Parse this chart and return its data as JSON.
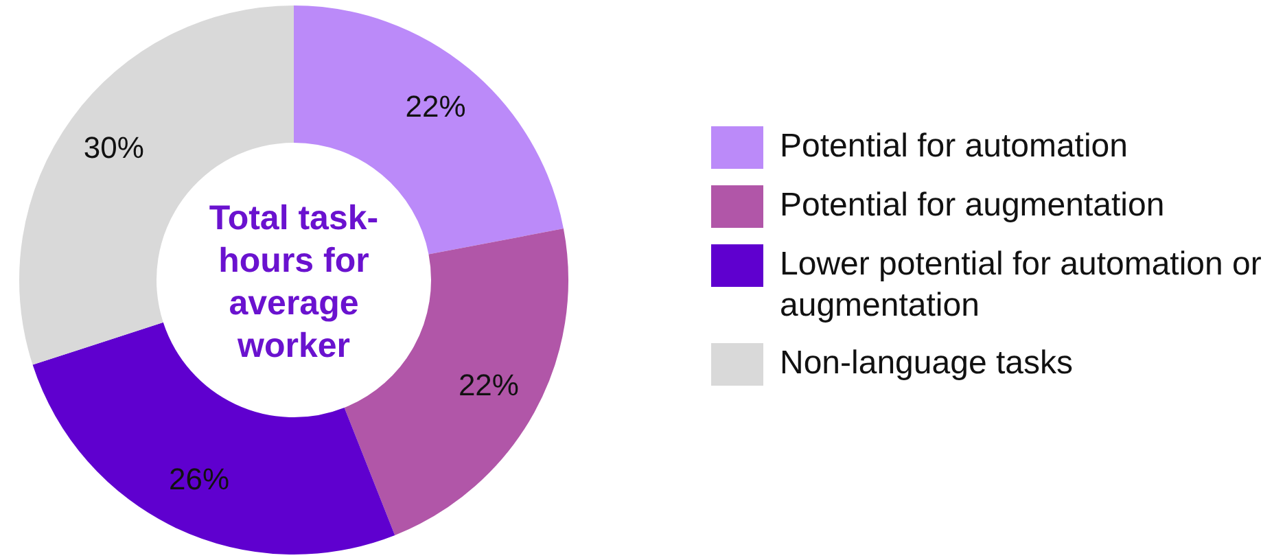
{
  "chart_data": {
    "type": "donut",
    "title": "Total task-hours for average worker",
    "categories": [
      "Potential for automation",
      "Potential for augmentation",
      "Lower potential for automation or augmentation",
      "Non-language tasks"
    ],
    "values": [
      22,
      22,
      26,
      30
    ],
    "colors": [
      "#bb8af9",
      "#b156a8",
      "#5f00cf",
      "#d9d9d9"
    ],
    "value_labels": [
      "22%",
      "22%",
      "26%",
      "30%"
    ],
    "legend": "right"
  }
}
